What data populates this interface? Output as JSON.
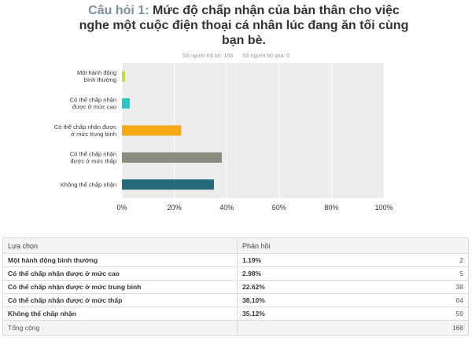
{
  "question": {
    "number_label": "Câu hỏi 1:",
    "text": "Mức độ chấp nhận của bản thân cho việc nghe một cuộc điện thoại cá nhân lúc đang ăn tối cùng bạn bè."
  },
  "meta": {
    "answered": "Số người trả lời: 168",
    "skipped": "Số người bỏ qua: 0"
  },
  "colors": {
    "plot_bg": "#ececec",
    "grid": "#ffffff"
  },
  "chart_data": {
    "type": "bar",
    "orientation": "horizontal",
    "categories": [
      [
        "Một hành động",
        "bình thường"
      ],
      [
        "Có thể chấp nhận",
        "được ở mức cao"
      ],
      [
        "Có thể chấp nhận được",
        "ở mức trung bình"
      ],
      [
        "Có thể chấp nhận",
        "được ở mức thấp"
      ],
      [
        "Không thể chấp nhận"
      ]
    ],
    "values": [
      1.19,
      2.98,
      22.62,
      38.1,
      35.12
    ],
    "colors": [
      "#c9dc3a",
      "#2ec4c4",
      "#f5aa15",
      "#8b8c7f",
      "#266b7d"
    ],
    "xlim": [
      0,
      100
    ],
    "x_ticks": [
      "0%",
      "20%",
      "40%",
      "60%",
      "80%",
      "100%"
    ],
    "grid": true
  },
  "table": {
    "header": [
      "Lựa chọn",
      "Phản hồi"
    ],
    "rows": [
      {
        "label": "Một hành động bình thường",
        "percent": "1.19%",
        "count": "2"
      },
      {
        "label": "Có thể chấp nhận được ở mức cao",
        "percent": "2.98%",
        "count": "5"
      },
      {
        "label": "Có thể chấp nhận được ở mức trung bình",
        "percent": "22.62%",
        "count": "38"
      },
      {
        "label": "Có thể chấp nhận được ở mức thấp",
        "percent": "38.10%",
        "count": "64"
      },
      {
        "label": "Không thể chấp nhận",
        "percent": "35.12%",
        "count": "59"
      }
    ],
    "total_label": "Tổng cộng",
    "total_count": "168"
  }
}
